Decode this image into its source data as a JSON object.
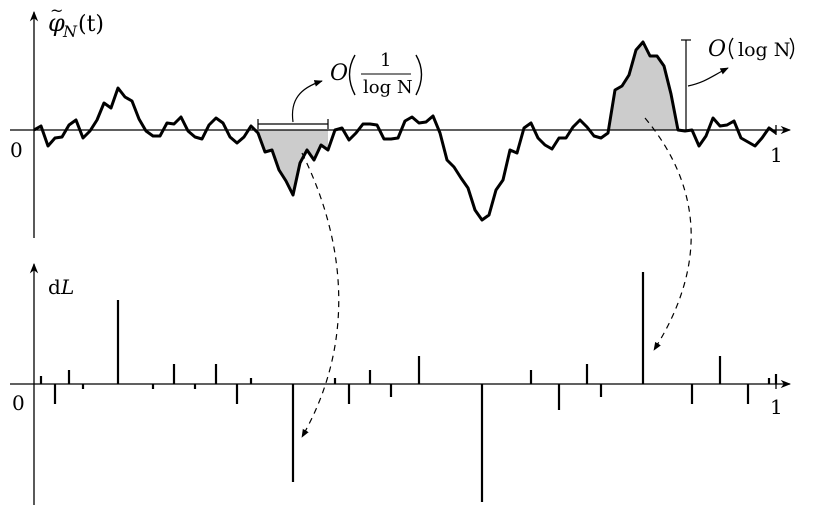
{
  "top_plot": {
    "y_label": {
      "phi": "φ",
      "tilde": "~",
      "sub": "N",
      "arg": "(t)"
    },
    "x_zero": "0",
    "x_one": "1",
    "annotation_width": {
      "O": "O",
      "num": "1",
      "den": "log N"
    },
    "annotation_height": {
      "O": "O",
      "body": "log N"
    },
    "path_points": [
      [
        34,
        130
      ],
      [
        41,
        126
      ],
      [
        48,
        146
      ],
      [
        55,
        138
      ],
      [
        62,
        137
      ],
      [
        69,
        125
      ],
      [
        76,
        120
      ],
      [
        83,
        138
      ],
      [
        90,
        131
      ],
      [
        97,
        120
      ],
      [
        104,
        103
      ],
      [
        111,
        108
      ],
      [
        118,
        88
      ],
      [
        125,
        97
      ],
      [
        132,
        101
      ],
      [
        139,
        119
      ],
      [
        146,
        131
      ],
      [
        153,
        136
      ],
      [
        160,
        136
      ],
      [
        167,
        123
      ],
      [
        174,
        124
      ],
      [
        181,
        117
      ],
      [
        188,
        131
      ],
      [
        195,
        137
      ],
      [
        202,
        139
      ],
      [
        209,
        125
      ],
      [
        216,
        118
      ],
      [
        223,
        123
      ],
      [
        230,
        137
      ],
      [
        237,
        143
      ],
      [
        244,
        137
      ],
      [
        251,
        126
      ],
      [
        258,
        133
      ],
      [
        265,
        152
      ],
      [
        272,
        150
      ],
      [
        279,
        170
      ],
      [
        286,
        181
      ],
      [
        293,
        195
      ],
      [
        300,
        163
      ],
      [
        307,
        150
      ],
      [
        314,
        160
      ],
      [
        321,
        145
      ],
      [
        328,
        150
      ],
      [
        335,
        130
      ],
      [
        342,
        128
      ],
      [
        349,
        140
      ],
      [
        356,
        133
      ],
      [
        363,
        124
      ],
      [
        370,
        124
      ],
      [
        377,
        125
      ],
      [
        384,
        139
      ],
      [
        391,
        139
      ],
      [
        398,
        138
      ],
      [
        405,
        121
      ],
      [
        412,
        117
      ],
      [
        419,
        123
      ],
      [
        426,
        122
      ],
      [
        433,
        116
      ],
      [
        440,
        133
      ],
      [
        447,
        160
      ],
      [
        454,
        167
      ],
      [
        461,
        178
      ],
      [
        468,
        188
      ],
      [
        475,
        210
      ],
      [
        482,
        220
      ],
      [
        489,
        215
      ],
      [
        496,
        190
      ],
      [
        503,
        180
      ],
      [
        510,
        150
      ],
      [
        517,
        153
      ],
      [
        524,
        128
      ],
      [
        531,
        123
      ],
      [
        538,
        138
      ],
      [
        545,
        145
      ],
      [
        552,
        149
      ],
      [
        559,
        138
      ],
      [
        566,
        138
      ],
      [
        573,
        127
      ],
      [
        580,
        120
      ],
      [
        587,
        127
      ],
      [
        594,
        136
      ],
      [
        601,
        138
      ],
      [
        608,
        133
      ],
      [
        615,
        90
      ],
      [
        622,
        86
      ],
      [
        629,
        75
      ],
      [
        636,
        50
      ],
      [
        643,
        42
      ],
      [
        650,
        56
      ],
      [
        657,
        56
      ],
      [
        664,
        66
      ],
      [
        671,
        94
      ],
      [
        678,
        130
      ],
      [
        685,
        131
      ],
      [
        692,
        130
      ],
      [
        699,
        146
      ],
      [
        706,
        136
      ],
      [
        713,
        118
      ],
      [
        720,
        126
      ],
      [
        727,
        125
      ],
      [
        734,
        121
      ],
      [
        741,
        138
      ],
      [
        748,
        142
      ],
      [
        755,
        146
      ],
      [
        762,
        138
      ],
      [
        769,
        128
      ],
      [
        776,
        133
      ]
    ]
  },
  "bottom_plot": {
    "y_label": {
      "d": "d",
      "L": "L"
    },
    "x_zero": "0",
    "x_one": "1",
    "spikes": [
      [
        41,
        -8
      ],
      [
        55,
        20
      ],
      [
        69,
        -14
      ],
      [
        83,
        5
      ],
      [
        118,
        -84
      ],
      [
        153,
        5
      ],
      [
        174,
        -20
      ],
      [
        195,
        5
      ],
      [
        216,
        -20
      ],
      [
        237,
        20
      ],
      [
        251,
        -6
      ],
      [
        293,
        98
      ],
      [
        335,
        -6
      ],
      [
        349,
        20
      ],
      [
        370,
        -14
      ],
      [
        391,
        13
      ],
      [
        419,
        -28
      ],
      [
        482,
        118
      ],
      [
        531,
        -14
      ],
      [
        559,
        26
      ],
      [
        587,
        -20
      ],
      [
        601,
        13
      ],
      [
        643,
        -112
      ],
      [
        692,
        20
      ],
      [
        720,
        -28
      ],
      [
        748,
        20
      ],
      [
        769,
        -6
      ],
      [
        776,
        -10
      ]
    ]
  }
}
